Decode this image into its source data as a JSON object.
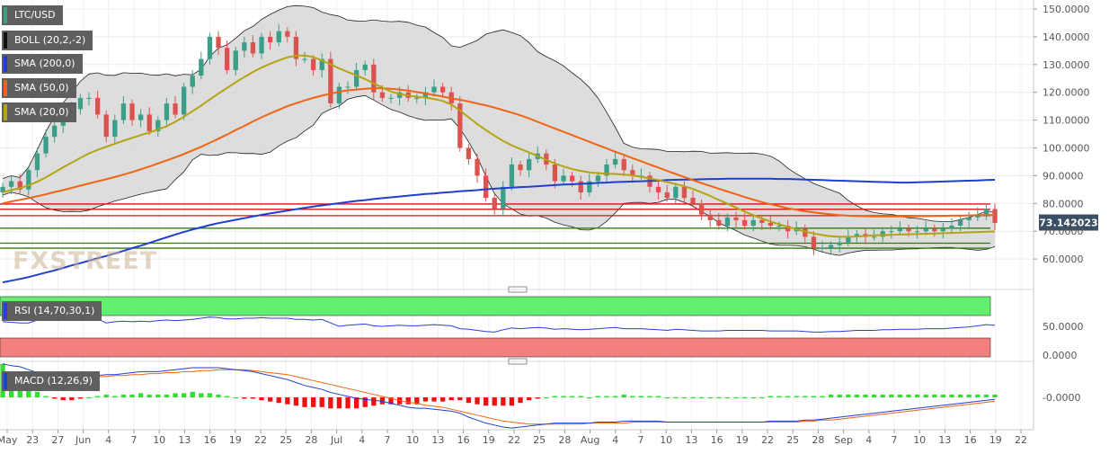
{
  "colors": {
    "up": "#3a9e88",
    "down": "#d9534f",
    "sma200": "#1f3fd1",
    "sma50": "#f06414",
    "sma20": "#b5a412",
    "boll_band": "#222222",
    "boll_fill": "#d7d7d7",
    "rsi_line": "#2a3fd8",
    "rsi_overbought": "#63f06e",
    "rsi_oversold": "#f47f7f",
    "macd_line": "#1f3fd1",
    "signal_line": "#f06414",
    "hist_pos": "#33dd33",
    "hist_neg": "#ee1111",
    "support_line": "#2f7d12",
    "resistance_line": "#e01010",
    "price_tag": "#3a4f66"
  },
  "legend": {
    "pair": "LTC/USD",
    "boll": "BOLL (20,2,-2)",
    "sma200": "SMA (200,0)",
    "sma50": "SMA (50,0)",
    "sma20": "SMA (20,0)",
    "rsi": "RSI (14,70,30,1)",
    "macd": "MACD (12,26,9)"
  },
  "watermark": "FXSTREET",
  "last_price_label": "73.142023",
  "chart_data": [
    {
      "type": "candlestick",
      "pair": "LTC/USD",
      "x_start": "2019-05-20",
      "x_labels": [
        "May",
        "23",
        "27",
        "Jun",
        "4",
        "7",
        "10",
        "13",
        "16",
        "19",
        "22",
        "25",
        "28",
        "Jul",
        "4",
        "7",
        "10",
        "13",
        "16",
        "19",
        "22",
        "25",
        "28",
        "Aug",
        "4",
        "7",
        "10",
        "13",
        "16",
        "19",
        "22",
        "25",
        "28",
        "Sep",
        "4",
        "7",
        "10",
        "13",
        "16",
        "19",
        "22"
      ],
      "y_ticks": [
        "150.0000",
        "140.0000",
        "130.0000",
        "120.0000",
        "110.0000",
        "100.0000",
        "90.0000",
        "80.0000",
        "70.0000",
        "60.0000"
      ],
      "ylim": [
        50,
        152
      ],
      "last_price": 73.142023,
      "horizontal_levels": {
        "resistance": [
          79.8,
          77.9,
          75.6
        ],
        "support": [
          71.1,
          65.7,
          63.9
        ]
      },
      "closes": [
        86,
        88,
        85,
        92,
        98,
        104,
        108,
        112,
        114,
        118,
        118,
        112,
        104,
        110,
        116,
        110,
        112,
        106,
        110,
        116,
        112,
        122,
        126,
        132,
        140,
        136,
        128,
        135,
        138,
        134,
        140,
        138,
        142,
        140,
        132,
        132,
        128,
        132,
        116,
        122,
        122,
        128,
        130,
        120,
        118,
        118,
        120,
        118,
        118,
        120,
        122,
        120,
        116,
        100,
        96,
        90,
        82,
        78,
        86,
        94,
        92,
        96,
        98,
        94,
        88,
        90,
        88,
        84,
        88,
        90,
        94,
        96,
        92,
        90,
        90,
        86,
        84,
        82,
        86,
        82,
        80,
        76,
        74,
        72,
        75,
        74,
        72,
        74,
        73,
        72,
        72,
        70,
        71,
        68,
        64,
        64,
        65,
        66,
        68,
        69,
        68,
        68,
        70,
        70,
        71,
        70,
        70,
        71,
        70,
        71,
        72,
        74,
        75,
        76,
        78,
        73
      ],
      "sma200": [
        51.6,
        52.2,
        52.8,
        53.5,
        54.3,
        55.1,
        55.9,
        56.8,
        57.7,
        58.5,
        59.4,
        60.3,
        61.1,
        62.0,
        62.9,
        63.9,
        64.8,
        65.8,
        66.8,
        67.8,
        68.8,
        69.7,
        70.6,
        71.4,
        72.2,
        72.9,
        73.5,
        74.1,
        74.7,
        75.3,
        75.9,
        76.4,
        76.9,
        77.4,
        77.9,
        78.4,
        78.9,
        79.3,
        79.7,
        80.1,
        80.5,
        80.9,
        81.2,
        81.6,
        81.9,
        82.2,
        82.5,
        82.8,
        83.1,
        83.4,
        83.6,
        83.9,
        84.1,
        84.4,
        84.6,
        84.8,
        85.1,
        85.3,
        85.5,
        85.7,
        85.9,
        86.0,
        86.2,
        86.4,
        86.6,
        86.8,
        86.9,
        87.1,
        87.2,
        87.4,
        87.5,
        87.7,
        87.8,
        87.9,
        88.0,
        88.1,
        88.2,
        88.4,
        88.5,
        88.6,
        88.6,
        88.7,
        88.8,
        88.8,
        88.9,
        88.9,
        88.9,
        88.9,
        88.9,
        88.9,
        88.8,
        88.8,
        88.7,
        88.6,
        88.5,
        88.4,
        88.3,
        88.2,
        88.1,
        88.0,
        87.9,
        87.8,
        87.7,
        87.6,
        87.5,
        87.5,
        87.6,
        87.7,
        87.8,
        87.9,
        88.0,
        88.1,
        88.2,
        88.3,
        88.4,
        88.5
      ],
      "sma50": [
        80.0,
        80.7,
        81.3,
        81.9,
        82.6,
        83.3,
        84.1,
        84.8,
        85.6,
        86.4,
        87.2,
        88.0,
        88.7,
        89.5,
        90.4,
        91.3,
        92.3,
        93.3,
        94.4,
        95.5,
        96.6,
        97.8,
        99.1,
        100.4,
        101.8,
        103.3,
        104.8,
        106.4,
        107.9,
        109.5,
        111.0,
        112.4,
        113.7,
        115.0,
        116.1,
        117.1,
        118.0,
        118.8,
        119.5,
        120.2,
        120.7,
        121.0,
        121.3,
        121.5,
        121.5,
        121.3,
        121.0,
        120.6,
        120.1,
        119.6,
        119.0,
        118.5,
        117.8,
        117.3,
        116.7,
        116.0,
        115.3,
        114.5,
        113.6,
        112.7,
        111.7,
        110.6,
        109.4,
        108.2,
        107.0,
        105.8,
        104.6,
        103.4,
        102.2,
        101.0,
        99.8,
        98.6,
        97.5,
        96.3,
        95.2,
        94.0,
        92.9,
        91.7,
        90.6,
        89.5,
        88.4,
        87.3,
        86.3,
        85.3,
        84.3,
        83.3,
        82.3,
        81.4,
        80.5,
        79.7,
        79.0,
        78.3,
        77.7,
        77.2,
        76.8,
        76.4,
        76.1,
        75.8,
        75.6,
        75.5,
        75.4,
        75.3,
        75.3,
        75.3,
        75.3,
        75.3,
        75.4,
        75.4,
        75.5,
        75.5,
        75.6,
        75.6,
        75.7,
        75.8,
        75.8,
        75.8
      ],
      "sma20": [
        84.0,
        84.8,
        85.5,
        86.5,
        87.8,
        89.4,
        91.2,
        93.0,
        94.7,
        96.4,
        98.0,
        99.3,
        100.4,
        101.5,
        102.6,
        103.6,
        104.6,
        105.5,
        106.6,
        107.8,
        109.4,
        111.2,
        113.2,
        115.2,
        117.4,
        119.5,
        121.6,
        123.6,
        125.5,
        127.3,
        128.9,
        130.3,
        131.5,
        132.6,
        133.2,
        133.3,
        132.7,
        131.5,
        130.1,
        128.6,
        127.3,
        126.1,
        124.8,
        123.2,
        121.7,
        120.3,
        119.4,
        118.8,
        118.4,
        118.1,
        117.6,
        116.9,
        115.6,
        113.5,
        111.0,
        108.6,
        106.4,
        104.4,
        102.5,
        100.9,
        99.6,
        98.4,
        97.1,
        95.7,
        94.4,
        93.3,
        92.4,
        91.7,
        91.2,
        90.9,
        90.7,
        90.6,
        90.4,
        90.1,
        89.6,
        89.0,
        88.4,
        87.7,
        87.0,
        86.2,
        85.2,
        84.0,
        82.7,
        81.3,
        79.9,
        78.5,
        77.1,
        75.8,
        74.6,
        73.5,
        72.5,
        71.6,
        70.7,
        69.9,
        69.2,
        68.6,
        68.2,
        68.0,
        68.0,
        68.1,
        68.3,
        68.5,
        68.6,
        68.7,
        68.8,
        68.9,
        69.0,
        69.1,
        69.2,
        69.3,
        69.4,
        69.5,
        69.6,
        69.7,
        69.8,
        69.9
      ],
      "rsi": [
        58,
        57,
        56,
        56,
        61,
        64,
        62,
        61,
        61,
        65,
        64,
        63,
        56,
        58,
        59,
        58,
        59,
        58,
        60,
        61,
        60,
        61,
        62,
        64,
        66,
        65,
        63,
        63,
        64,
        64,
        65,
        64,
        64,
        64,
        62,
        62,
        61,
        62,
        56,
        50,
        52,
        53,
        54,
        51,
        50,
        51,
        52,
        51,
        51,
        52,
        53,
        52,
        51,
        46,
        45,
        43,
        41,
        40,
        44,
        47,
        46,
        47,
        48,
        47,
        45,
        46,
        45,
        44,
        45,
        46,
        47,
        48,
        46,
        46,
        46,
        45,
        44,
        43,
        45,
        44,
        43,
        42,
        42,
        42,
        43,
        43,
        43,
        43,
        43,
        42,
        42,
        42,
        42,
        41,
        40,
        40,
        41,
        41,
        42,
        43,
        43,
        43,
        44,
        44,
        45,
        45,
        45,
        46,
        46,
        46,
        47,
        48,
        49,
        51,
        53,
        52
      ],
      "macd": [
        3.4,
        3.2,
        3.1,
        2.8,
        2.5,
        2.2,
        2.0,
        1.9,
        1.9,
        2.0,
        2.1,
        2.2,
        2.3,
        2.3,
        2.4,
        2.5,
        2.6,
        2.6,
        2.6,
        2.7,
        2.8,
        2.9,
        3.0,
        3.0,
        3.0,
        3.0,
        2.9,
        2.8,
        2.7,
        2.6,
        2.4,
        2.2,
        2.0,
        1.8,
        1.5,
        1.2,
        1.0,
        0.8,
        0.5,
        0.3,
        0.1,
        -0.1,
        -0.2,
        -0.3,
        -0.4,
        -0.6,
        -0.8,
        -1.0,
        -1.1,
        -1.1,
        -1.2,
        -1.3,
        -1.4,
        -1.6,
        -2.0,
        -2.3,
        -2.6,
        -2.8,
        -3.0,
        -3.1,
        -3.0,
        -2.9,
        -2.8,
        -2.7,
        -2.6,
        -2.6,
        -2.6,
        -2.6,
        -2.6,
        -2.5,
        -2.5,
        -2.5,
        -2.4,
        -2.4,
        -2.4,
        -2.4,
        -2.4,
        -2.5,
        -2.5,
        -2.5,
        -2.5,
        -2.5,
        -2.5,
        -2.5,
        -2.5,
        -2.5,
        -2.5,
        -2.5,
        -2.5,
        -2.4,
        -2.4,
        -2.4,
        -2.4,
        -2.3,
        -2.3,
        -2.2,
        -2.1,
        -2.0,
        -1.9,
        -1.8,
        -1.7,
        -1.6,
        -1.5,
        -1.4,
        -1.3,
        -1.2,
        -1.1,
        -1.0,
        -0.9,
        -0.8,
        -0.7,
        -0.6,
        -0.5,
        -0.4,
        -0.3,
        -0.2
      ],
      "signal": [
        1.0,
        1.4,
        1.8,
        2.0,
        2.1,
        2.1,
        2.1,
        2.1,
        2.1,
        2.1,
        2.1,
        2.1,
        2.1,
        2.2,
        2.2,
        2.3,
        2.3,
        2.4,
        2.4,
        2.5,
        2.5,
        2.6,
        2.6,
        2.7,
        2.7,
        2.8,
        2.8,
        2.8,
        2.8,
        2.7,
        2.6,
        2.5,
        2.4,
        2.3,
        2.1,
        1.9,
        1.7,
        1.5,
        1.3,
        1.1,
        0.9,
        0.7,
        0.5,
        0.3,
        0.1,
        -0.1,
        -0.3,
        -0.5,
        -0.6,
        -0.8,
        -0.9,
        -1.0,
        -1.2,
        -1.4,
        -1.6,
        -1.8,
        -2.0,
        -2.2,
        -2.4,
        -2.5,
        -2.6,
        -2.7,
        -2.7,
        -2.7,
        -2.7,
        -2.7,
        -2.7,
        -2.7,
        -2.6,
        -2.6,
        -2.6,
        -2.6,
        -2.6,
        -2.5,
        -2.5,
        -2.5,
        -2.5,
        -2.5,
        -2.5,
        -2.5,
        -2.5,
        -2.5,
        -2.5,
        -2.5,
        -2.5,
        -2.5,
        -2.5,
        -2.5,
        -2.5,
        -2.5,
        -2.5,
        -2.5,
        -2.5,
        -2.4,
        -2.4,
        -2.3,
        -2.3,
        -2.2,
        -2.1,
        -2.0,
        -1.9,
        -1.8,
        -1.7,
        -1.6,
        -1.5,
        -1.4,
        -1.3,
        -1.2,
        -1.1,
        -1.0,
        -0.9,
        -0.8,
        -0.7,
        -0.6,
        -0.5,
        -0.4
      ],
      "rsi_ticks": [
        "50.0000",
        "0.0000"
      ],
      "macd_ticks": [
        "-0.0000"
      ]
    }
  ]
}
